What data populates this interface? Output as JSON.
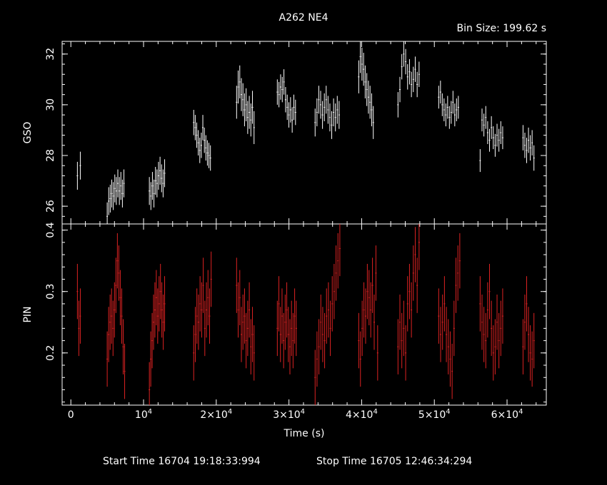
{
  "header": {
    "title": "A262 NE4",
    "bin_size": "Bin Size: 199.62 s"
  },
  "footer": {
    "start_time": "Start Time 16704 19:18:33:994",
    "stop_time": "Stop Time 16705 12:46:34:294"
  },
  "colors": {
    "gso": "#ffffff",
    "pin": "#dd2222",
    "axes": "#ffffff",
    "background": "#000000"
  },
  "chart_data": [
    {
      "type": "scatter",
      "ylabel": "GSO",
      "xlim": [
        -1200,
        65400
      ],
      "ylim": [
        25.3,
        32.5
      ],
      "yticks": [
        {
          "v": 26,
          "label": "26"
        },
        {
          "v": 28,
          "label": "28"
        },
        {
          "v": 30,
          "label": "30"
        },
        {
          "v": 32,
          "label": "32"
        }
      ],
      "color": "#ffffff",
      "segments": [
        {
          "x0": 900,
          "x1": 1300,
          "y": [
            27.2,
            27.6
          ],
          "err": 0.55
        },
        {
          "x0": 5000,
          "x1": 7300,
          "y": [
            25.6,
            26.2,
            26.3,
            26.5,
            26.4,
            26.7,
            26.6,
            26.9,
            26.6,
            26.8,
            26.5,
            26.9
          ],
          "err": 0.55
        },
        {
          "x0": 10800,
          "x1": 12900,
          "y": [
            26.6,
            26.4,
            26.8,
            26.5,
            27.0,
            26.9,
            27.2,
            27.4,
            27.1,
            26.9,
            27.3
          ],
          "err": 0.55
        },
        {
          "x0": 16900,
          "x1": 19200,
          "y": [
            29.3,
            29.1,
            28.8,
            28.5,
            28.2,
            28.4,
            29.1,
            28.6,
            28.3,
            28.1,
            28.0,
            27.9
          ],
          "err": 0.5
        },
        {
          "x0": 22800,
          "x1": 25200,
          "y": [
            30.1,
            30.7,
            30.9,
            30.4,
            30.2,
            29.8,
            30.0,
            29.5,
            29.7,
            29.4,
            29.9,
            29.1
          ],
          "err": 0.65
        },
        {
          "x0": 28400,
          "x1": 30900,
          "y": [
            30.5,
            30.4,
            30.7,
            30.6,
            30.9,
            30.2,
            29.9,
            29.6,
            29.8,
            29.4,
            29.9,
            29.7
          ],
          "err": 0.5
        },
        {
          "x0": 33600,
          "x1": 36900,
          "y": [
            29.3,
            29.7,
            30.2,
            30.0,
            29.6,
            29.9,
            30.2,
            29.8,
            29.5,
            29.2,
            29.7,
            29.5,
            29.8,
            29.6
          ],
          "err": 0.55
        },
        {
          "x0": 39600,
          "x1": 41600,
          "y": [
            31.1,
            31.9,
            31.6,
            31.4,
            30.9,
            30.6,
            30.3,
            30.1,
            29.8,
            29.3
          ],
          "err": 0.65
        },
        {
          "x0": 45000,
          "x1": 47900,
          "y": [
            30.0,
            30.6,
            31.5,
            32.0,
            31.7,
            31.1,
            31.3,
            30.8,
            31.0,
            31.4,
            30.8,
            31.2
          ],
          "err": 0.5
        },
        {
          "x0": 50600,
          "x1": 53300,
          "y": [
            30.3,
            30.5,
            30.0,
            29.8,
            29.6,
            29.9,
            29.5,
            29.7,
            30.1,
            29.6,
            29.8,
            29.9
          ],
          "err": 0.45
        },
        {
          "x0": 56300,
          "x1": 59400,
          "y": [
            27.8,
            29.4,
            29.2,
            29.5,
            28.9,
            28.6,
            29.1,
            28.7,
            28.4,
            28.8,
            28.6,
            28.9,
            28.7
          ],
          "err": 0.45
        },
        {
          "x0": 62200,
          "x1": 63700,
          "y": [
            28.7,
            28.4,
            28.2,
            28.6,
            28.3,
            28.5,
            27.9
          ],
          "err": 0.5
        }
      ]
    },
    {
      "type": "scatter",
      "ylabel": "PIN",
      "xlabel": "Time (s)",
      "xlim": [
        -1200,
        65400
      ],
      "ylim": [
        0.115,
        0.41
      ],
      "yticks": [
        {
          "v": 0.2,
          "label": "0.2"
        },
        {
          "v": 0.3,
          "label": "0.3"
        },
        {
          "v": 0.4,
          "label": "0.4"
        }
      ],
      "xticks": [
        {
          "v": 0,
          "label": "0",
          "exp": ""
        },
        {
          "v": 10000,
          "label": "10",
          "exp": "4"
        },
        {
          "v": 20000,
          "label": "2×10",
          "exp": "4"
        },
        {
          "v": 30000,
          "label": "3×10",
          "exp": "4"
        },
        {
          "v": 40000,
          "label": "4×10",
          "exp": "4"
        },
        {
          "v": 50000,
          "label": "5×10",
          "exp": "4"
        },
        {
          "v": 60000,
          "label": "6×10",
          "exp": "4"
        }
      ],
      "color": "#dd2222",
      "segments": [
        {
          "x0": 900,
          "x1": 1300,
          "y": [
            0.3,
            0.24,
            0.26
          ],
          "err": 0.045
        },
        {
          "x0": 5000,
          "x1": 7400,
          "y": [
            0.19,
            0.23,
            0.25,
            0.26,
            0.24,
            0.27,
            0.31,
            0.35,
            0.33,
            0.29,
            0.26,
            0.21,
            0.17
          ],
          "err": 0.045
        },
        {
          "x0": 10800,
          "x1": 12900,
          "y": [
            0.14,
            0.19,
            0.22,
            0.25,
            0.27,
            0.29,
            0.26,
            0.28,
            0.3,
            0.27,
            0.25,
            0.28
          ],
          "err": 0.045
        },
        {
          "x0": 16900,
          "x1": 19300,
          "y": [
            0.2,
            0.23,
            0.26,
            0.25,
            0.28,
            0.27,
            0.31,
            0.24,
            0.27,
            0.29,
            0.26,
            0.32
          ],
          "err": 0.045
        },
        {
          "x0": 22800,
          "x1": 25200,
          "y": [
            0.31,
            0.27,
            0.29,
            0.23,
            0.25,
            0.26,
            0.22,
            0.24,
            0.27,
            0.21,
            0.23,
            0.2
          ],
          "err": 0.045
        },
        {
          "x0": 28400,
          "x1": 31000,
          "y": [
            0.24,
            0.28,
            0.23,
            0.26,
            0.22,
            0.25,
            0.27,
            0.23,
            0.21,
            0.24,
            0.22,
            0.26,
            0.24
          ],
          "err": 0.045
        },
        {
          "x0": 33600,
          "x1": 37000,
          "y": [
            0.16,
            0.19,
            0.21,
            0.25,
            0.23,
            0.22,
            0.26,
            0.27,
            0.24,
            0.28,
            0.3,
            0.33,
            0.35,
            0.37
          ],
          "err": 0.045
        },
        {
          "x0": 39600,
          "x1": 42200,
          "y": [
            0.22,
            0.19,
            0.24,
            0.27,
            0.26,
            0.3,
            0.29,
            0.27,
            0.31,
            0.25,
            0.33,
            0.2
          ],
          "err": 0.045
        },
        {
          "x0": 45000,
          "x1": 47900,
          "y": [
            0.21,
            0.25,
            0.22,
            0.24,
            0.2,
            0.28,
            0.3,
            0.27,
            0.33,
            0.36,
            0.31,
            0.38
          ],
          "err": 0.045
        },
        {
          "x0": 50600,
          "x1": 53500,
          "y": [
            0.26,
            0.23,
            0.25,
            0.28,
            0.23,
            0.21,
            0.19,
            0.17,
            0.24,
            0.31,
            0.33,
            0.35
          ],
          "err": 0.045
        },
        {
          "x0": 56300,
          "x1": 59400,
          "y": [
            0.28,
            0.25,
            0.23,
            0.22,
            0.27,
            0.3,
            0.24,
            0.2,
            0.21,
            0.25,
            0.22,
            0.24,
            0.26
          ],
          "err": 0.045
        },
        {
          "x0": 62200,
          "x1": 63700,
          "y": [
            0.21,
            0.25,
            0.28,
            0.23,
            0.2,
            0.19,
            0.22
          ],
          "err": 0.045
        }
      ]
    }
  ]
}
